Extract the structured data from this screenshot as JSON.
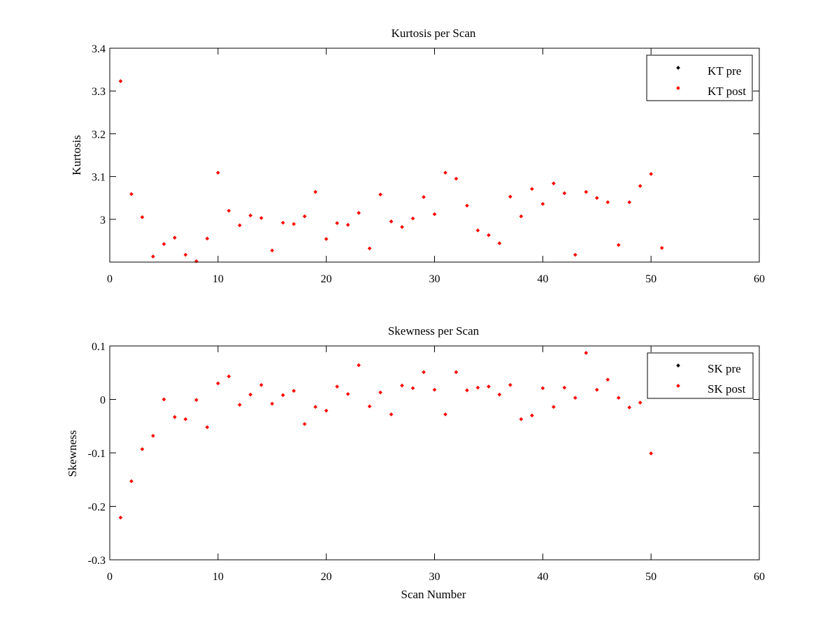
{
  "chart_data": [
    {
      "type": "scatter",
      "title": "Kurtosis per Scan",
      "xlabel": "",
      "ylabel": "Kurtosis",
      "xlim": [
        0,
        60
      ],
      "ylim": [
        2.9,
        3.4
      ],
      "xticks": [
        0,
        10,
        20,
        30,
        40,
        50,
        60
      ],
      "yticks": [
        3,
        3.1,
        3.2,
        3.3,
        3.4
      ],
      "grid": false,
      "legend_position": "top-right",
      "series": [
        {
          "name": "KT pre",
          "color": "#000000",
          "points": []
        },
        {
          "name": "KT post",
          "color": "#ff0000",
          "points": [
            [
              1,
              3.323
            ],
            [
              2,
              3.059
            ],
            [
              3,
              3.005
            ],
            [
              4,
              2.913
            ],
            [
              5,
              2.942
            ],
            [
              6,
              2.957
            ],
            [
              7,
              2.917
            ],
            [
              8,
              2.902
            ],
            [
              9,
              2.955
            ],
            [
              10,
              3.109
            ],
            [
              11,
              3.02
            ],
            [
              12,
              2.986
            ],
            [
              13,
              3.009
            ],
            [
              14,
              3.003
            ],
            [
              15,
              2.927
            ],
            [
              16,
              2.992
            ],
            [
              17,
              2.989
            ],
            [
              18,
              3.007
            ],
            [
              19,
              3.064
            ],
            [
              20,
              2.954
            ],
            [
              21,
              2.991
            ],
            [
              22,
              2.987
            ],
            [
              23,
              3.015
            ],
            [
              24,
              2.932
            ],
            [
              25,
              3.058
            ],
            [
              26,
              2.995
            ],
            [
              27,
              2.982
            ],
            [
              28,
              3.002
            ],
            [
              29,
              3.052
            ],
            [
              30,
              3.012
            ],
            [
              31,
              3.109
            ],
            [
              32,
              3.095
            ],
            [
              33,
              3.032
            ],
            [
              34,
              2.974
            ],
            [
              35,
              2.963
            ],
            [
              36,
              2.944
            ],
            [
              37,
              3.053
            ],
            [
              38,
              3.007
            ],
            [
              39,
              3.071
            ],
            [
              40,
              3.036
            ],
            [
              41,
              3.084
            ],
            [
              42,
              3.061
            ],
            [
              43,
              2.917
            ],
            [
              44,
              3.064
            ],
            [
              45,
              3.05
            ],
            [
              46,
              3.04
            ],
            [
              47,
              2.94
            ],
            [
              48,
              3.04
            ],
            [
              49,
              3.078
            ],
            [
              50,
              3.106
            ],
            [
              51,
              2.933
            ]
          ]
        }
      ]
    },
    {
      "type": "scatter",
      "title": "Skewness per Scan",
      "xlabel": "Scan Number",
      "ylabel": "Skewness",
      "xlim": [
        0,
        60
      ],
      "ylim": [
        -0.3,
        0.1
      ],
      "xticks": [
        0,
        10,
        20,
        30,
        40,
        50,
        60
      ],
      "yticks": [
        -0.3,
        -0.2,
        -0.1,
        0,
        0.1
      ],
      "grid": false,
      "legend_position": "top-right",
      "series": [
        {
          "name": "SK pre",
          "color": "#000000",
          "points": []
        },
        {
          "name": "SK post",
          "color": "#ff0000",
          "points": [
            [
              1,
              -0.221
            ],
            [
              2,
              -0.153
            ],
            [
              3,
              -0.093
            ],
            [
              4,
              -0.068
            ],
            [
              5,
              0.0
            ],
            [
              6,
              -0.033
            ],
            [
              7,
              -0.037
            ],
            [
              8,
              -0.001
            ],
            [
              9,
              -0.052
            ],
            [
              10,
              0.03
            ],
            [
              11,
              0.043
            ],
            [
              12,
              -0.01
            ],
            [
              13,
              0.009
            ],
            [
              14,
              0.027
            ],
            [
              15,
              -0.008
            ],
            [
              16,
              0.008
            ],
            [
              17,
              0.016
            ],
            [
              18,
              -0.046
            ],
            [
              19,
              -0.014
            ],
            [
              20,
              -0.021
            ],
            [
              21,
              0.024
            ],
            [
              22,
              0.01
            ],
            [
              23,
              0.064
            ],
            [
              24,
              -0.013
            ],
            [
              25,
              0.013
            ],
            [
              26,
              -0.028
            ],
            [
              27,
              0.026
            ],
            [
              28,
              0.021
            ],
            [
              29,
              0.051
            ],
            [
              30,
              0.018
            ],
            [
              31,
              -0.028
            ],
            [
              32,
              0.051
            ],
            [
              33,
              0.017
            ],
            [
              34,
              0.022
            ],
            [
              35,
              0.024
            ],
            [
              36,
              0.009
            ],
            [
              37,
              0.027
            ],
            [
              38,
              -0.037
            ],
            [
              39,
              -0.03
            ],
            [
              40,
              0.021
            ],
            [
              41,
              -0.014
            ],
            [
              42,
              0.022
            ],
            [
              43,
              0.003
            ],
            [
              44,
              0.087
            ],
            [
              45,
              0.018
            ],
            [
              46,
              0.037
            ],
            [
              47,
              0.003
            ],
            [
              48,
              -0.015
            ],
            [
              49,
              -0.006
            ],
            [
              50,
              -0.101
            ]
          ]
        }
      ]
    }
  ]
}
